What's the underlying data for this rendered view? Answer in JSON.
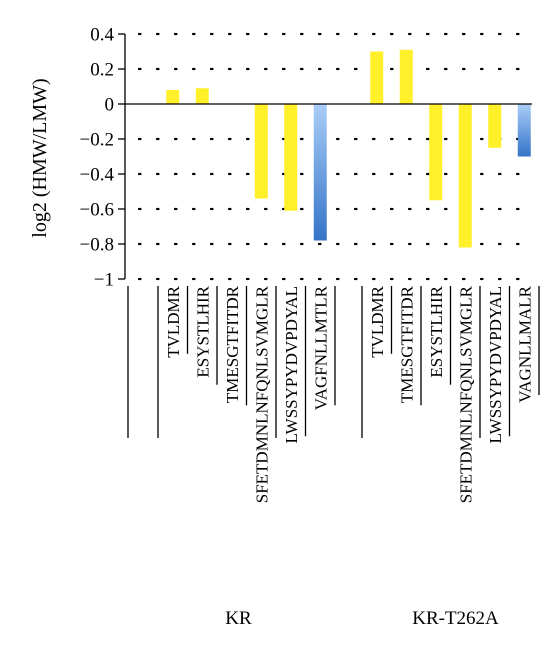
{
  "chart_data": {
    "type": "bar",
    "ylabel": "log2 (HMW/LMW)",
    "ylim": [
      -1,
      0.4
    ],
    "yticks": [
      0.4,
      0.2,
      0,
      -0.2,
      -0.4,
      -0.6,
      -0.8,
      -1
    ],
    "ytick_labels": [
      "0.4",
      "0.2",
      "0",
      "−0.2",
      "−0.4",
      "−0.6",
      "−0.8",
      "−1"
    ],
    "grid": "dotted-horizontal",
    "groups": [
      {
        "name": "KR",
        "bars": [
          {
            "label": "TVLDMR",
            "value": 0.08,
            "color": "#fff02a"
          },
          {
            "label": "ESYSTLHIR",
            "value": 0.09,
            "color": "#fff02a"
          },
          {
            "label": "TMESGTFITDR",
            "value": 0.0,
            "color": "#fff02a"
          },
          {
            "label": "SFETDMNLNFQNLSVMGLR",
            "value": -0.54,
            "color": "#fff02a"
          },
          {
            "label": "LWSSYPYDVPDYAL",
            "value": -0.61,
            "color": "#fff02a"
          },
          {
            "label": "VAGFNLLMTLR",
            "value": -0.78,
            "color": "#4a86d4"
          }
        ]
      },
      {
        "name": "KR-T262A",
        "bars": [
          {
            "label": "TVLDMR",
            "value": 0.3,
            "color": "#fff02a"
          },
          {
            "label": "TMESGTFITDR",
            "value": 0.31,
            "color": "#fff02a"
          },
          {
            "label": "ESYSTLHIR",
            "value": -0.55,
            "color": "#fff02a"
          },
          {
            "label": "SFETDMNLNFQNLSVMGLR",
            "value": -0.82,
            "color": "#fff02a"
          },
          {
            "label": "LWSSYPYDVPDYAL",
            "value": -0.25,
            "color": "#fff02a"
          },
          {
            "label": "VAGNLLMALR",
            "value": -0.3,
            "color": "#4a86d4"
          }
        ]
      }
    ]
  }
}
